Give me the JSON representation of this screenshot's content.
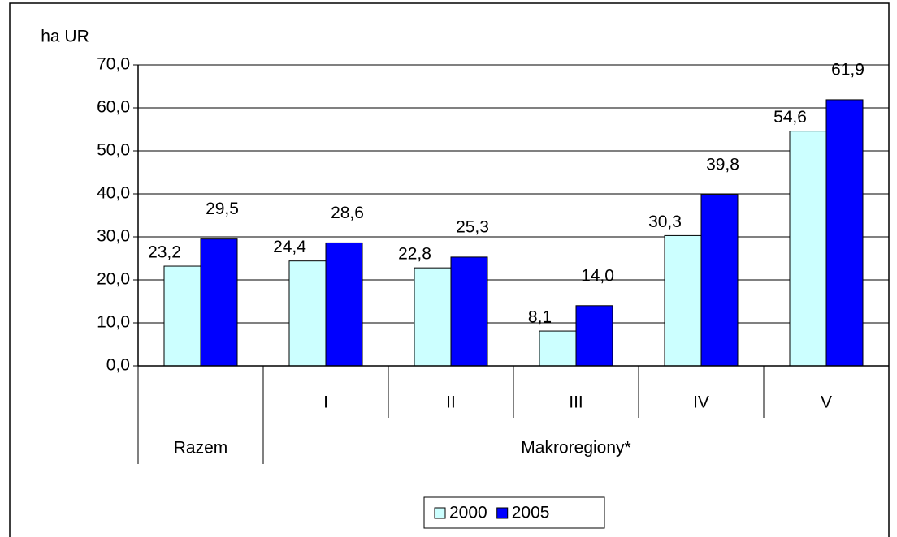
{
  "chart_data": {
    "type": "bar",
    "y_axis_label": "ha UR",
    "categories": [
      "Razem",
      "I",
      "II",
      "III",
      "IV",
      "V"
    ],
    "group_label": "Makroregiony*",
    "series": [
      {
        "name": "2000",
        "color": "#ccffff",
        "values": [
          23.2,
          24.4,
          22.8,
          8.1,
          30.3,
          54.6
        ],
        "value_labels": [
          "23,2",
          "24,4",
          "22,8",
          "8,1",
          "30,3",
          "54,6"
        ]
      },
      {
        "name": "2005",
        "color": "#0000ff",
        "values": [
          29.5,
          28.6,
          25.3,
          14.0,
          39.8,
          61.9
        ],
        "value_labels": [
          "29,5",
          "28,6",
          "25,3",
          "14,0",
          "39,8",
          "61,9"
        ]
      }
    ],
    "ylim": [
      0,
      70
    ],
    "yticks": [
      {
        "value": 0,
        "label": "0,0"
      },
      {
        "value": 10,
        "label": "10,0"
      },
      {
        "value": 20,
        "label": "20,0"
      },
      {
        "value": 30,
        "label": "30,0"
      },
      {
        "value": 40,
        "label": "40,0"
      },
      {
        "value": 50,
        "label": "50,0"
      },
      {
        "value": 60,
        "label": "60,0"
      },
      {
        "value": 70,
        "label": "70,0"
      }
    ],
    "grid": true,
    "legend": "bottom"
  }
}
